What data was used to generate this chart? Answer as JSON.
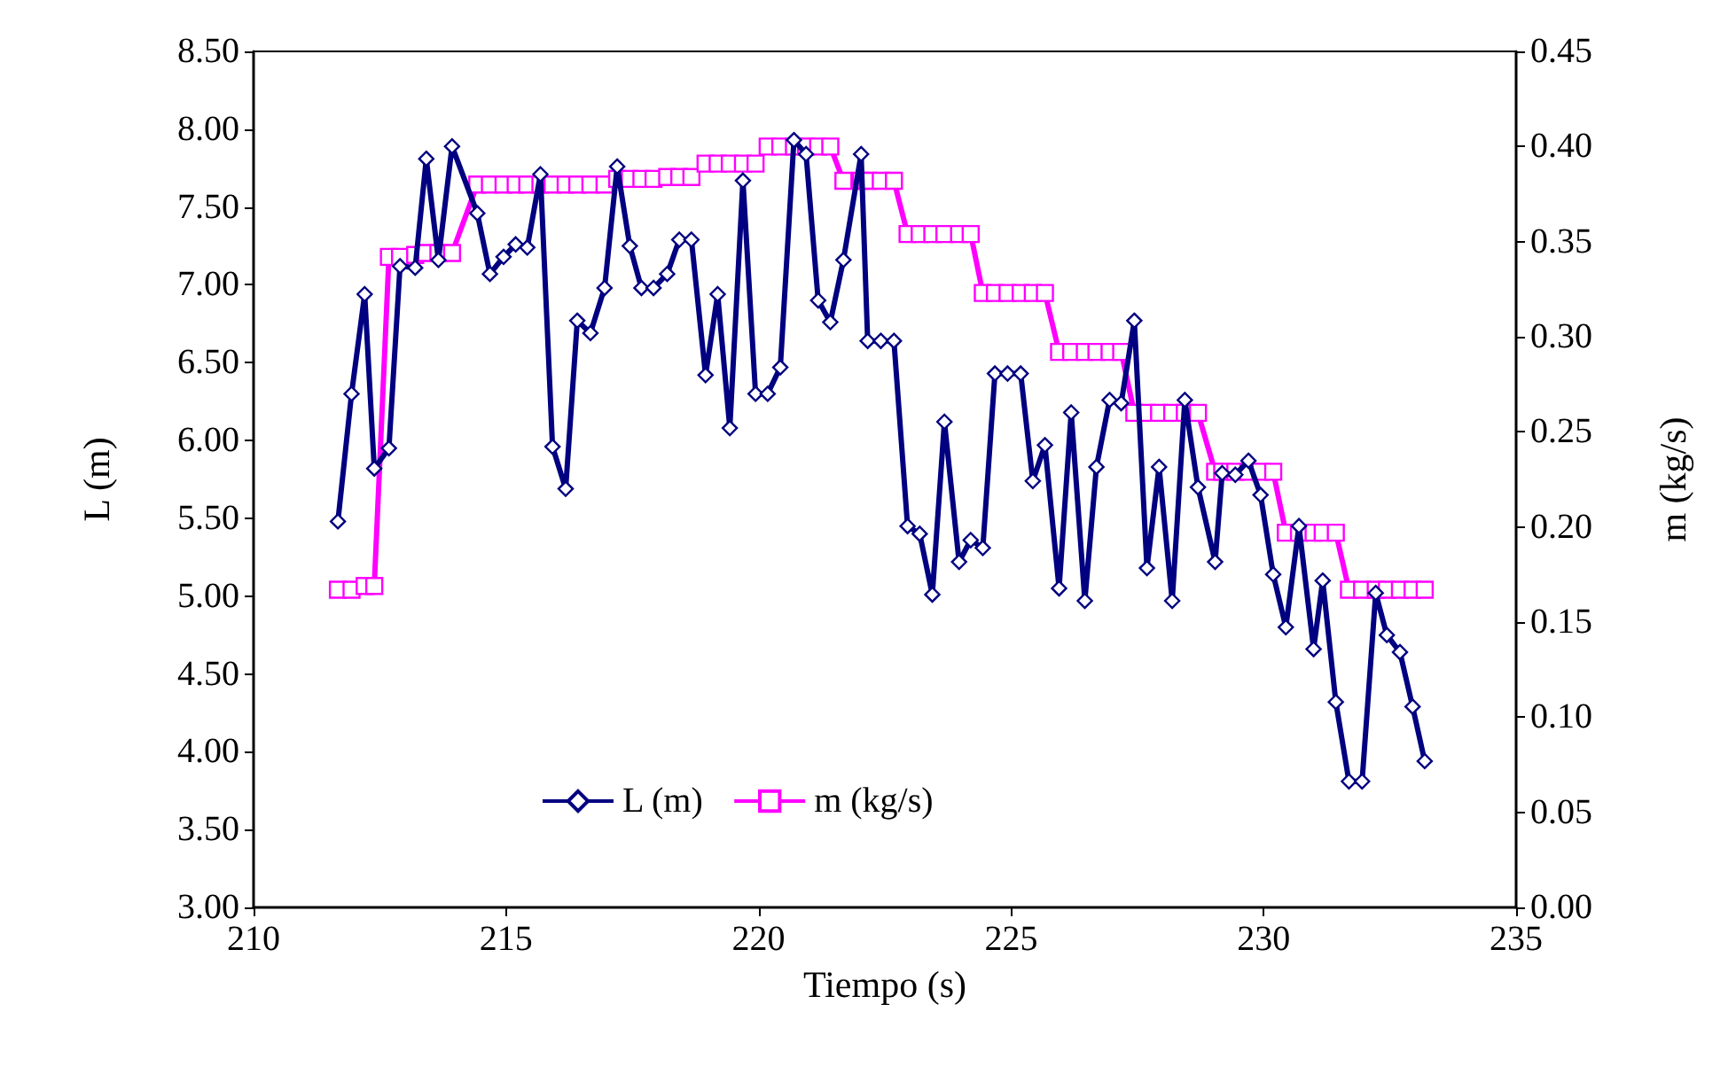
{
  "chart_data": {
    "type": "line",
    "xlabel": "Tiempo (s)",
    "ylabel": "L (m)",
    "y2label": "m (kg/s)",
    "xlim": [
      210,
      235
    ],
    "xticks": [
      210,
      215,
      220,
      225,
      230,
      235
    ],
    "ylim": [
      3,
      8.5
    ],
    "yticks": [
      {
        "value": 3,
        "label": "3.00"
      },
      {
        "value": 3.5,
        "label": "3.50"
      },
      {
        "value": 4,
        "label": "4.00"
      },
      {
        "value": 4.5,
        "label": "4.50"
      },
      {
        "value": 5,
        "label": "5.00"
      },
      {
        "value": 5.5,
        "label": "5.50"
      },
      {
        "value": 6,
        "label": "6.00"
      },
      {
        "value": 6.5,
        "label": "6.50"
      },
      {
        "value": 7,
        "label": "7.00"
      },
      {
        "value": 7.5,
        "label": "7.50"
      },
      {
        "value": 8,
        "label": "8.00"
      },
      {
        "value": 8.5,
        "label": "8.50"
      }
    ],
    "y2lim": [
      0,
      0.45
    ],
    "y2ticks": [
      {
        "value": 0,
        "label": "0.00"
      },
      {
        "value": 0.05,
        "label": "0.05"
      },
      {
        "value": 0.1,
        "label": "0.10"
      },
      {
        "value": 0.15,
        "label": "0.15"
      },
      {
        "value": 0.2,
        "label": "0.20"
      },
      {
        "value": 0.25,
        "label": "0.25"
      },
      {
        "value": 0.3,
        "label": "0.30"
      },
      {
        "value": 0.35,
        "label": "0.35"
      },
      {
        "value": 0.4,
        "label": "0.40"
      },
      {
        "value": 0.45,
        "label": "0.45"
      }
    ],
    "x": [
      211.67,
      211.94,
      212.2,
      212.39,
      212.68,
      212.9,
      213.2,
      213.42,
      213.66,
      213.93,
      214.43,
      214.68,
      214.95,
      215.19,
      215.42,
      215.68,
      215.92,
      216.18,
      216.41,
      216.67,
      216.95,
      217.2,
      217.45,
      217.68,
      217.92,
      218.19,
      218.43,
      218.67,
      218.95,
      219.19,
      219.43,
      219.69,
      219.94,
      220.18,
      220.43,
      220.7,
      220.94,
      221.18,
      221.42,
      221.68,
      222.03,
      222.16,
      222.42,
      222.68,
      222.95,
      223.19,
      223.44,
      223.68,
      223.97,
      224.2,
      224.44,
      224.68,
      224.93,
      225.19,
      225.43,
      225.67,
      225.95,
      226.19,
      226.46,
      226.69,
      226.95,
      227.18,
      227.44,
      227.69,
      227.93,
      228.19,
      228.44,
      228.7,
      229.04,
      229.18,
      229.44,
      229.7,
      229.94,
      230.19,
      230.44,
      230.7,
      230.99,
      231.17,
      231.43,
      231.69,
      231.95,
      232.22,
      232.44,
      232.7,
      232.95,
      233.19
    ],
    "series": [
      {
        "name": "L (m)",
        "color": "#000080",
        "marker": "diamond",
        "values": [
          5.48,
          6.3,
          6.94,
          5.82,
          5.95,
          7.12,
          7.11,
          7.81,
          7.16,
          7.89,
          7.46,
          7.07,
          7.18,
          7.26,
          7.24,
          7.71,
          5.96,
          5.69,
          6.77,
          6.69,
          6.98,
          7.76,
          7.25,
          6.98,
          6.98,
          7.07,
          7.29,
          7.29,
          6.42,
          6.94,
          6.08,
          7.67,
          6.3,
          6.3,
          6.47,
          7.93,
          7.84,
          6.9,
          6.76,
          7.16,
          7.84,
          6.64,
          6.64,
          6.64,
          5.45,
          5.4,
          5.01,
          6.12,
          5.22,
          5.36,
          5.31,
          6.43,
          6.43,
          6.43,
          5.74,
          5.97,
          5.05,
          6.18,
          4.97,
          5.83,
          6.26,
          6.24,
          6.77,
          5.18,
          5.83,
          4.97,
          6.26,
          5.7,
          5.22,
          5.79,
          5.78,
          5.87,
          5.65,
          5.14,
          4.8,
          5.45,
          4.66,
          5.1,
          4.32,
          3.81,
          3.81,
          5.02,
          4.75,
          4.64,
          4.29,
          3.94
        ]
      },
      {
        "name": "m (kg/s)",
        "color": "#ff00ff",
        "marker": "square",
        "axis": "y2",
        "values": [
          0.167,
          0.167,
          0.169,
          0.169,
          0.342,
          0.342,
          0.343,
          0.344,
          0.344,
          0.344,
          0.38,
          0.38,
          0.38,
          0.38,
          0.38,
          0.38,
          0.38,
          0.38,
          0.38,
          0.38,
          0.38,
          0.383,
          0.383,
          0.383,
          0.383,
          0.384,
          0.384,
          0.384,
          0.391,
          0.391,
          0.391,
          0.391,
          0.391,
          0.4,
          0.4,
          0.4,
          0.4,
          0.4,
          0.4,
          0.382,
          0.382,
          0.382,
          0.382,
          0.382,
          0.354,
          0.354,
          0.354,
          0.354,
          0.354,
          0.354,
          0.323,
          0.323,
          0.323,
          0.323,
          0.323,
          0.323,
          0.292,
          0.292,
          0.292,
          0.292,
          0.292,
          0.292,
          0.26,
          0.26,
          0.26,
          0.26,
          0.26,
          0.26,
          0.229,
          0.229,
          0.229,
          0.229,
          0.229,
          0.229,
          0.197,
          0.197,
          0.197,
          0.197,
          0.197,
          0.167,
          0.167,
          0.167,
          0.167,
          0.167,
          0.167,
          0.167
        ]
      }
    ],
    "legend": "bottom",
    "grid": false,
    "line_style": "solid"
  }
}
